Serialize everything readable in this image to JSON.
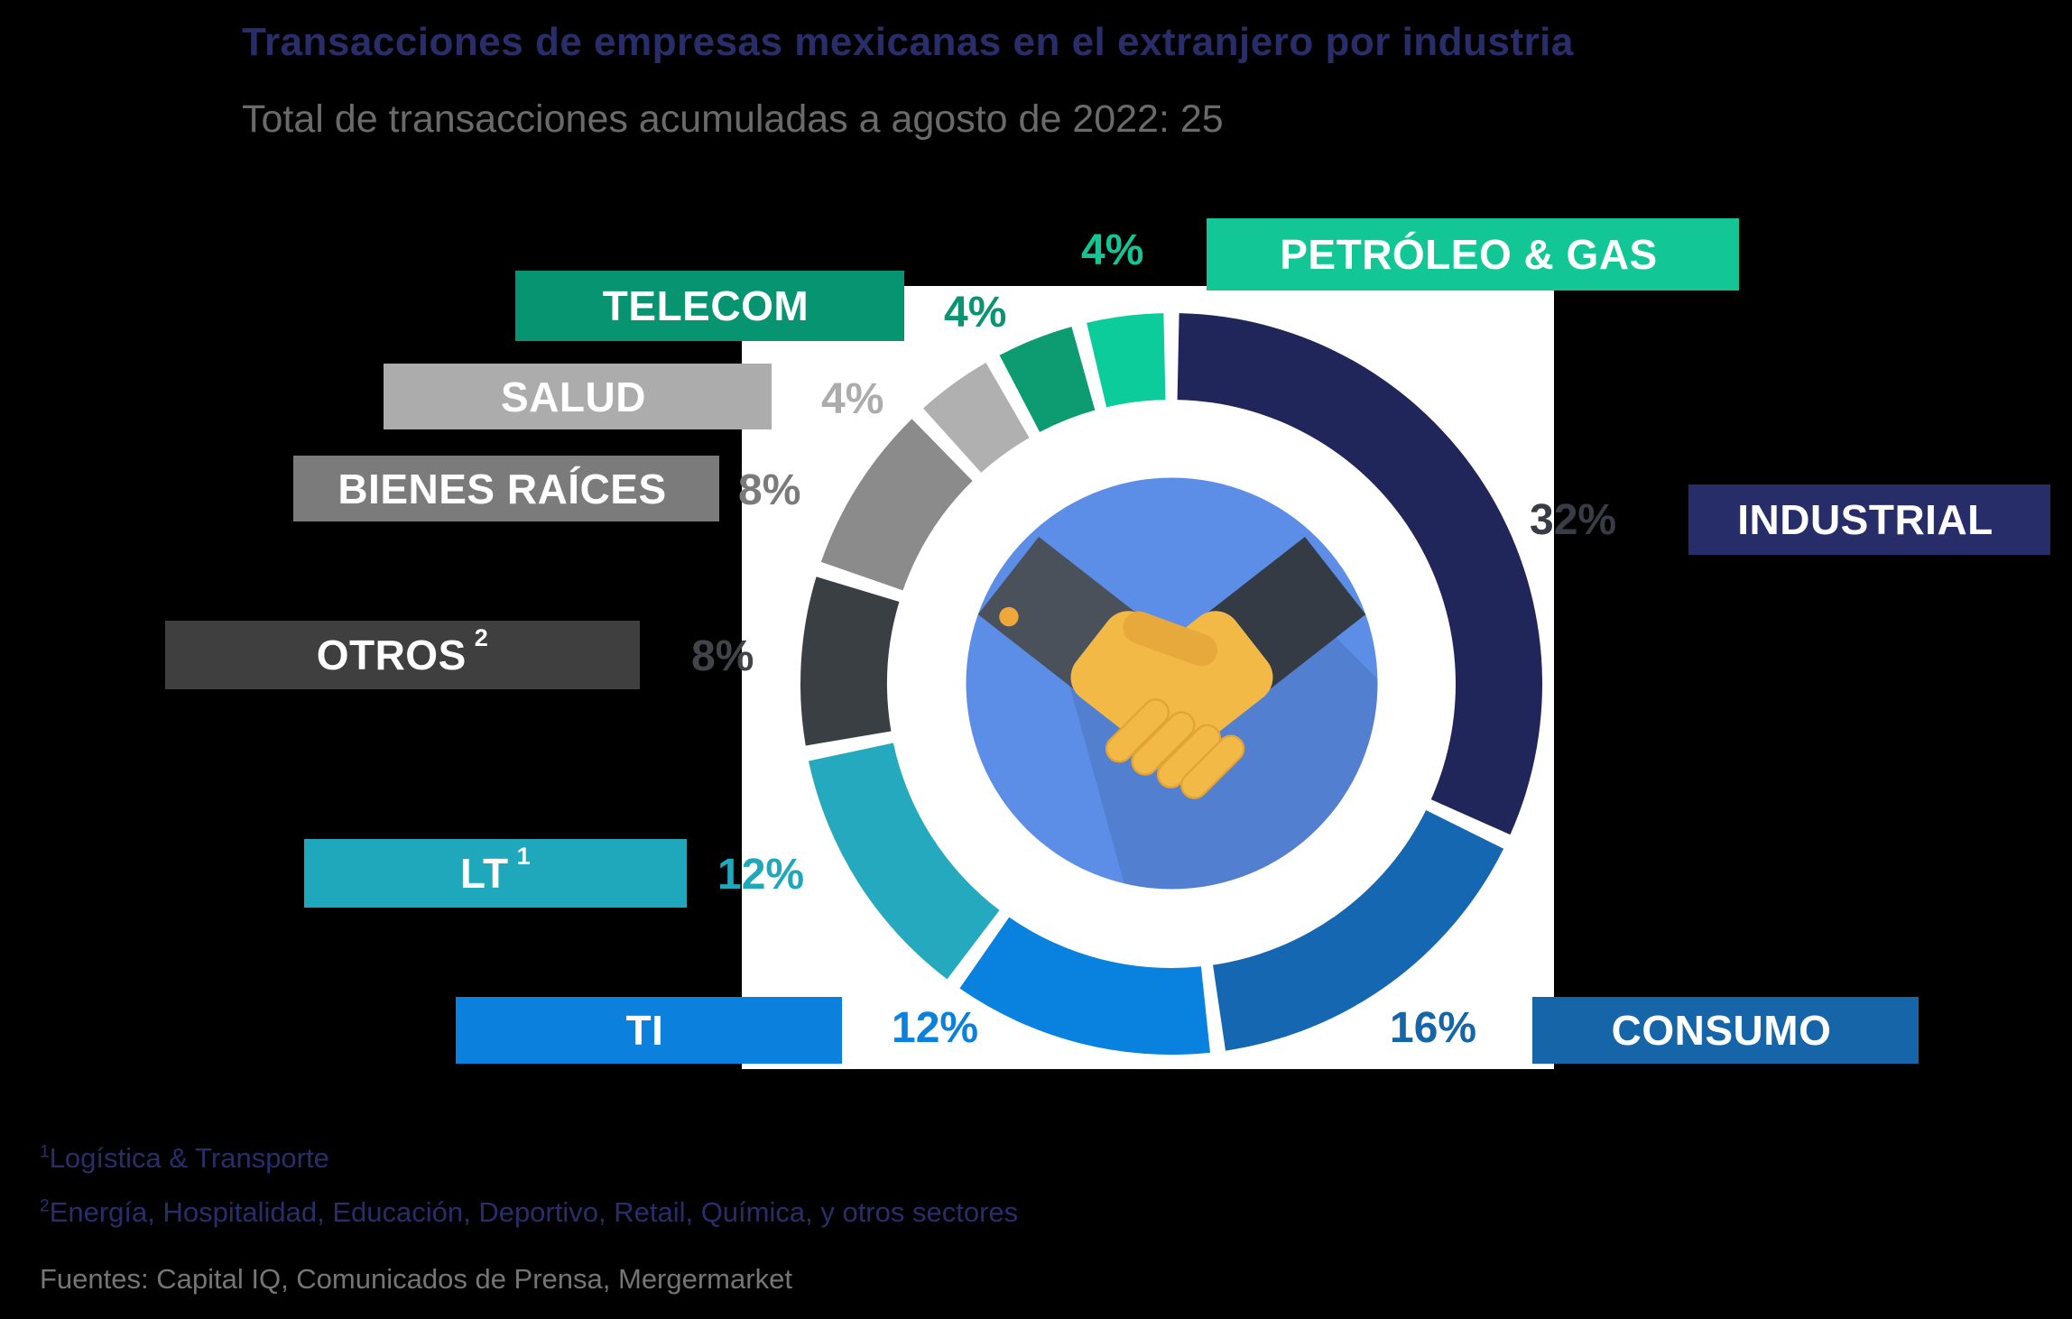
{
  "title": "Transacciones de empresas mexicanas en el extranjero por industria",
  "subtitle": "Total de transacciones acumuladas a agosto de 2022: 25",
  "chart_data": {
    "type": "pie",
    "variant": "donut",
    "unit": "%",
    "total_transactions": 25,
    "start_angle_deg": 0,
    "direction": "clockwise",
    "legend_position": "callout-boxes-around-donut",
    "categories": [
      "INDUSTRIAL",
      "CONSUMO",
      "TI",
      "LT",
      "OTROS",
      "BIENES RAÍCES",
      "SALUD",
      "TELECOM",
      "PETRÓLEO & GAS"
    ],
    "values": [
      32,
      16,
      12,
      12,
      8,
      8,
      4,
      4,
      4
    ],
    "segments": [
      {
        "label": "INDUSTRIAL",
        "sup": "",
        "value": 32,
        "pct": "32%",
        "slice_color": "#20265A",
        "box_bg": "#272D68",
        "pct_color": "#373C47"
      },
      {
        "label": "CONSUMO",
        "sup": "",
        "value": 16,
        "pct": "16%",
        "slice_color": "#1467B0",
        "box_bg": "#1565A8",
        "pct_color": "#1565A8"
      },
      {
        "label": "TI",
        "sup": "",
        "value": 12,
        "pct": "12%",
        "slice_color": "#0981DF",
        "box_bg": "#0B80DC",
        "pct_color": "#0B80DC"
      },
      {
        "label": "LT",
        "sup": "1",
        "value": 12,
        "pct": "12%",
        "slice_color": "#24A9BF",
        "box_bg": "#1FA7BC",
        "pct_color": "#1FA7BC"
      },
      {
        "label": "OTROS",
        "sup": "2",
        "value": 8,
        "pct": "8%",
        "slice_color": "#3A3F44",
        "box_bg": "#3F3F3F",
        "pct_color": "#414549"
      },
      {
        "label": "BIENES RAÍCES",
        "sup": "",
        "value": 8,
        "pct": "8%",
        "slice_color": "#8B8B8B",
        "box_bg": "#7B7B7B",
        "pct_color": "#7B7B7B"
      },
      {
        "label": "SALUD",
        "sup": "",
        "value": 4,
        "pct": "4%",
        "slice_color": "#B0B0B0",
        "box_bg": "#ACACAC",
        "pct_color": "#ACACAC"
      },
      {
        "label": "TELECOM",
        "sup": "",
        "value": 4,
        "pct": "4%",
        "slice_color": "#0D9B72",
        "box_bg": "#079471",
        "pct_color": "#0A9472"
      },
      {
        "label": "PETRÓLEO & GAS",
        "sup": "",
        "value": 4,
        "pct": "4%",
        "slice_color": "#0CCC9C",
        "box_bg": "#12C795",
        "pct_color": "#12C795"
      }
    ]
  },
  "center_icon": {
    "name": "handshake-icon",
    "circle_color": "#5C8EE8",
    "hand_color": "#F3B946",
    "sleeve_left_color": "#4A515B",
    "sleeve_right_color": "#343B44",
    "cuff_color": "#E9EDF3"
  },
  "footnotes": [
    {
      "sup": "1",
      "text": "Logística & Transporte"
    },
    {
      "sup": "2",
      "text": "Energía, Hospitalidad, Educación, Deportivo, Retail, Química, y otros sectores"
    }
  ],
  "sources": "Fuentes: Capital IQ, Comunicados de Prensa, Mergermarket"
}
